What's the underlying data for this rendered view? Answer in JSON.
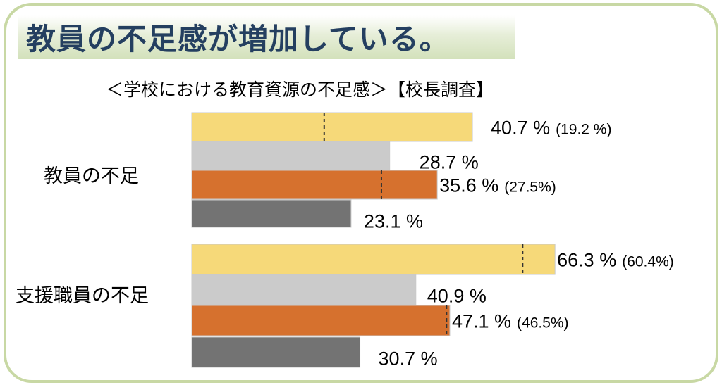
{
  "title": "教員の不足感が増加している。",
  "chart_data": {
    "type": "bar",
    "orientation": "horizontal",
    "title": "＜学校における教育資源の不足感＞【校長調査】",
    "categories": [
      "教員の不足",
      "支援職員の不足"
    ],
    "series": [
      {
        "values": [
          40.7,
          66.3
        ],
        "color": "#f6d979",
        "secondary": [
          19.2,
          60.4
        ],
        "secondary_labels": [
          "(19.2 %)",
          "(60.4%)"
        ]
      },
      {
        "values": [
          28.7,
          40.9
        ],
        "color": "#cbcbcb"
      },
      {
        "values": [
          35.6,
          47.1
        ],
        "color": "#d6712e",
        "secondary": [
          27.5,
          46.5
        ],
        "secondary_labels": [
          "(27.5%)",
          "(46.5%)"
        ]
      },
      {
        "values": [
          23.1,
          30.7
        ],
        "color": "#737373"
      }
    ],
    "value_labels": [
      [
        "40.7 %",
        "28.7 %",
        "35.6 %",
        "23.1 %"
      ],
      [
        "66.3 %",
        "40.9 %",
        "47.1 %",
        "30.7 %"
      ]
    ],
    "secondary_style": "dashed vertical marker",
    "axes_visible": false,
    "grid": false,
    "legend": "none"
  }
}
